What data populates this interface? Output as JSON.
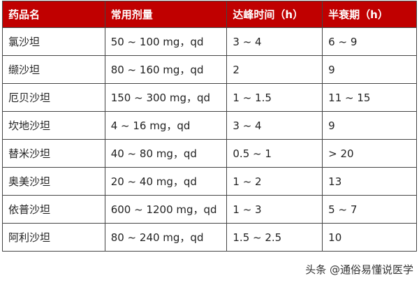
{
  "headers": [
    "药品名",
    "常用剂量",
    "达峰时间（h）",
    "半衰期（h）"
  ],
  "rows": [
    [
      "氯沙坦",
      "50 ~ 100 mg，qd",
      "3 ~ 4",
      "6 ~ 9"
    ],
    [
      "缬沙坦",
      "80 ~ 160 mg，qd",
      "2",
      "9"
    ],
    [
      "厄贝沙坦",
      "150 ~ 300 mg，qd",
      "1 ~ 1.5",
      "11 ~ 15"
    ],
    [
      "坎地沙坦",
      "4 ~ 16 mg，qd",
      "3 ~ 4",
      "9"
    ],
    [
      "替米沙坦",
      "40 ~ 80 mg，qd",
      "0.5 ~ 1",
      "> 20"
    ],
    [
      "奥美沙坦",
      "20 ~ 40 mg，qd",
      "1 ~ 2",
      "13"
    ],
    [
      "依普沙坦",
      "600 ~ 1200 mg，qd",
      "1 ~ 3",
      "5 ~ 7"
    ],
    [
      "阿利沙坦",
      "80 ~ 240 mg，qd",
      "1.5 ~ 2.5",
      "10"
    ]
  ],
  "watermark": "头条 @通俗易懂说医学",
  "colors": {
    "header_bg": "#c00000"
  }
}
